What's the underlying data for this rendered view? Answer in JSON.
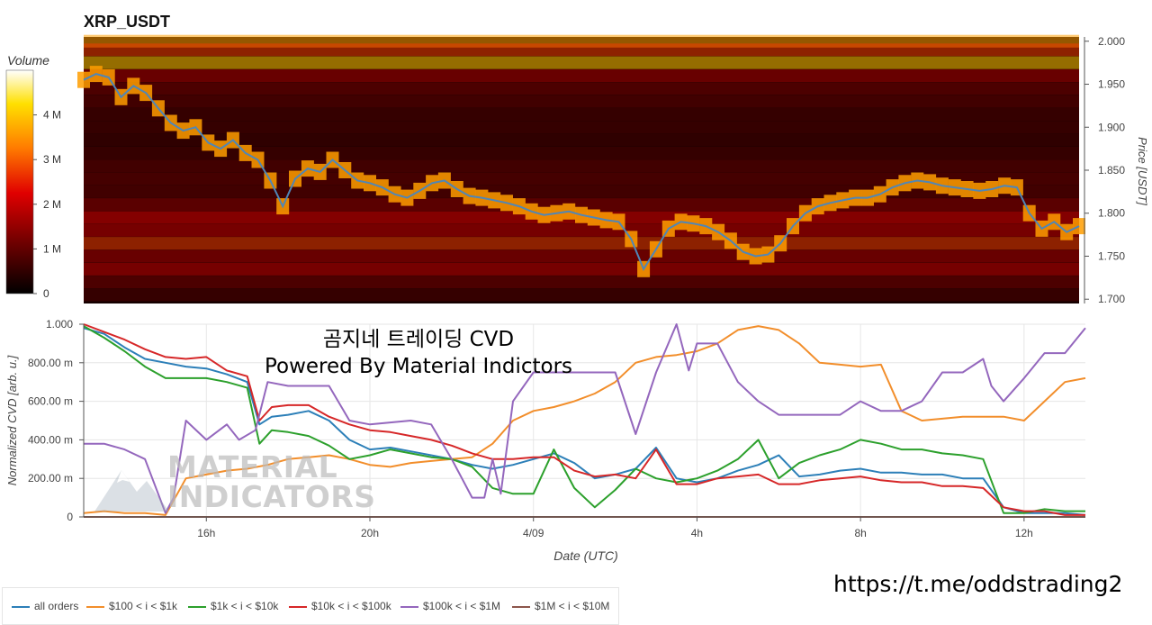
{
  "chart_data": [
    {
      "type": "heatmap",
      "title": "XRP_USDT",
      "ylabel": "Price [USDT]",
      "ylim": [
        1.695,
        2.005
      ],
      "y_ticks": [
        "2.000",
        "1.950",
        "1.900",
        "1.850",
        "1.800",
        "1.750",
        "1.700"
      ],
      "colorbar": {
        "title": "Volume",
        "ticks": [
          "4 M",
          "3 M",
          "2 M",
          "1 M",
          "0"
        ],
        "range": [
          0,
          5
        ]
      },
      "price_line": {
        "color": "#4f86b7",
        "values": [
          1.955,
          1.962,
          1.958,
          1.935,
          1.948,
          1.94,
          1.922,
          1.905,
          1.896,
          1.9,
          1.882,
          1.875,
          1.885,
          1.87,
          1.862,
          1.838,
          1.808,
          1.84,
          1.852,
          1.848,
          1.862,
          1.85,
          1.838,
          1.835,
          1.83,
          1.822,
          1.818,
          1.826,
          1.835,
          1.838,
          1.828,
          1.82,
          1.818,
          1.815,
          1.812,
          1.808,
          1.802,
          1.798,
          1.8,
          1.802,
          1.798,
          1.795,
          1.792,
          1.79,
          1.77,
          1.735,
          1.758,
          1.782,
          1.79,
          1.788,
          1.785,
          1.778,
          1.768,
          1.755,
          1.75,
          1.752,
          1.765,
          1.785,
          1.8,
          1.808,
          1.812,
          1.815,
          1.818,
          1.818,
          1.822,
          1.83,
          1.835,
          1.838,
          1.836,
          1.832,
          1.83,
          1.828,
          1.826,
          1.828,
          1.832,
          1.83,
          1.8,
          1.782,
          1.79,
          1.778,
          1.785
        ]
      },
      "bands": [
        {
          "price": 2.0,
          "level": 0.72
        },
        {
          "price": 1.99,
          "level": 0.55
        },
        {
          "price": 1.975,
          "level": 0.8
        },
        {
          "price": 1.96,
          "level": 0.35
        },
        {
          "price": 1.945,
          "level": 0.25
        },
        {
          "price": 1.93,
          "level": 0.2
        },
        {
          "price": 1.915,
          "level": 0.15
        },
        {
          "price": 1.9,
          "level": 0.15
        },
        {
          "price": 1.885,
          "level": 0.12
        },
        {
          "price": 1.87,
          "level": 0.15
        },
        {
          "price": 1.855,
          "level": 0.2
        },
        {
          "price": 1.84,
          "level": 0.22
        },
        {
          "price": 1.825,
          "level": 0.2
        },
        {
          "price": 1.81,
          "level": 0.3
        },
        {
          "price": 1.795,
          "level": 0.45
        },
        {
          "price": 1.78,
          "level": 0.4
        },
        {
          "price": 1.765,
          "level": 0.55
        },
        {
          "price": 1.75,
          "level": 0.35
        },
        {
          "price": 1.735,
          "level": 0.4
        },
        {
          "price": 1.72,
          "level": 0.25
        },
        {
          "price": 1.705,
          "level": 0.15
        }
      ]
    },
    {
      "type": "line",
      "xlabel": "Date (UTC)",
      "ylabel": "Normalized CVD [arb. u.]",
      "ylim": [
        0,
        1.0
      ],
      "y_ticks": [
        "1.000",
        "800.00 m",
        "600.00 m",
        "400.00 m",
        "200.00 m",
        "0"
      ],
      "x_ticks": [
        "16h",
        "20h",
        "4/09",
        "4h",
        "8h",
        "12h"
      ],
      "x_tick_hours": [
        16,
        20,
        24,
        28,
        32,
        36
      ],
      "x_range_hours": [
        13,
        37.5
      ],
      "grid": true,
      "legend_position": "bottom",
      "series": [
        {
          "name": "all orders",
          "color": "#2c7fb8",
          "x": [
            13,
            13.5,
            14,
            14.5,
            15,
            15.5,
            16,
            16.5,
            17,
            17.3,
            17.6,
            18,
            18.5,
            19,
            19.5,
            20,
            20.5,
            21,
            21.5,
            22,
            22.5,
            23,
            23.5,
            24,
            24.5,
            25,
            25.5,
            26,
            26.5,
            27,
            27.5,
            28,
            28.5,
            29,
            29.5,
            30,
            30.5,
            31,
            31.5,
            32,
            32.5,
            33,
            33.5,
            34,
            34.5,
            35,
            35.5,
            36,
            36.5,
            37,
            37.5
          ],
          "y": [
            0.98,
            0.95,
            0.88,
            0.82,
            0.8,
            0.78,
            0.77,
            0.74,
            0.7,
            0.48,
            0.52,
            0.53,
            0.55,
            0.5,
            0.4,
            0.35,
            0.36,
            0.34,
            0.32,
            0.3,
            0.27,
            0.25,
            0.27,
            0.3,
            0.33,
            0.28,
            0.2,
            0.22,
            0.25,
            0.36,
            0.2,
            0.18,
            0.2,
            0.24,
            0.27,
            0.32,
            0.21,
            0.22,
            0.24,
            0.25,
            0.23,
            0.23,
            0.22,
            0.22,
            0.2,
            0.2,
            0.05,
            0.02,
            0.02,
            0.02,
            0.01
          ]
        },
        {
          "name": "$100 < i < $1k",
          "color": "#f28e2b",
          "x": [
            13,
            13.5,
            14,
            14.5,
            15,
            15.5,
            16,
            16.5,
            17,
            17.5,
            18,
            18.5,
            19,
            19.5,
            20,
            20.5,
            21,
            21.5,
            22,
            22.5,
            23,
            23.5,
            24,
            24.5,
            25,
            25.5,
            26,
            26.5,
            27,
            27.5,
            28,
            28.5,
            29,
            29.5,
            30,
            30.5,
            31,
            31.5,
            32,
            32.5,
            33,
            33.5,
            34,
            34.5,
            35,
            35.5,
            36,
            36.5,
            37,
            37.5
          ],
          "y": [
            0.02,
            0.03,
            0.02,
            0.02,
            0.01,
            0.2,
            0.22,
            0.24,
            0.25,
            0.27,
            0.3,
            0.31,
            0.32,
            0.3,
            0.27,
            0.26,
            0.28,
            0.29,
            0.3,
            0.31,
            0.38,
            0.5,
            0.55,
            0.57,
            0.6,
            0.64,
            0.7,
            0.8,
            0.83,
            0.84,
            0.86,
            0.9,
            0.97,
            0.99,
            0.97,
            0.9,
            0.8,
            0.79,
            0.78,
            0.79,
            0.55,
            0.5,
            0.51,
            0.52,
            0.52,
            0.52,
            0.5,
            0.6,
            0.7,
            0.72
          ]
        },
        {
          "name": "$1k < i < $10k",
          "color": "#2ca02c",
          "x": [
            13,
            13.5,
            14,
            14.5,
            15,
            15.5,
            16,
            16.5,
            17,
            17.3,
            17.6,
            18,
            18.5,
            19,
            19.5,
            20,
            20.5,
            21,
            21.5,
            22,
            22.5,
            23,
            23.5,
            24,
            24.5,
            25,
            25.5,
            26,
            26.5,
            27,
            27.5,
            28,
            28.5,
            29,
            29.5,
            30,
            30.5,
            31,
            31.5,
            32,
            32.5,
            33,
            33.5,
            34,
            34.5,
            35,
            35.5,
            36,
            36.5,
            37,
            37.5
          ],
          "y": [
            0.99,
            0.93,
            0.86,
            0.78,
            0.72,
            0.72,
            0.72,
            0.7,
            0.67,
            0.38,
            0.45,
            0.44,
            0.42,
            0.37,
            0.3,
            0.32,
            0.35,
            0.33,
            0.31,
            0.3,
            0.26,
            0.15,
            0.12,
            0.12,
            0.35,
            0.15,
            0.05,
            0.14,
            0.25,
            0.2,
            0.18,
            0.2,
            0.24,
            0.3,
            0.4,
            0.2,
            0.28,
            0.32,
            0.35,
            0.4,
            0.38,
            0.35,
            0.35,
            0.33,
            0.32,
            0.3,
            0.02,
            0.02,
            0.04,
            0.03,
            0.03
          ]
        },
        {
          "name": "$10k < i < $100k",
          "color": "#d62728",
          "x": [
            13,
            13.5,
            14,
            14.5,
            15,
            15.5,
            16,
            16.5,
            17,
            17.3,
            17.6,
            18,
            18.5,
            19,
            19.5,
            20,
            20.5,
            21,
            21.5,
            22,
            22.5,
            23,
            23.5,
            24,
            24.5,
            25,
            25.5,
            26,
            26.5,
            27,
            27.5,
            28,
            28.5,
            29,
            29.5,
            30,
            30.5,
            31,
            31.5,
            32,
            32.5,
            33,
            33.5,
            34,
            34.5,
            35,
            35.5,
            36,
            36.5,
            37,
            37.5
          ],
          "y": [
            1.0,
            0.96,
            0.92,
            0.87,
            0.83,
            0.82,
            0.83,
            0.76,
            0.73,
            0.5,
            0.57,
            0.58,
            0.58,
            0.52,
            0.48,
            0.45,
            0.44,
            0.42,
            0.4,
            0.37,
            0.33,
            0.3,
            0.3,
            0.31,
            0.31,
            0.24,
            0.21,
            0.22,
            0.2,
            0.35,
            0.17,
            0.17,
            0.2,
            0.21,
            0.22,
            0.17,
            0.17,
            0.19,
            0.2,
            0.21,
            0.19,
            0.18,
            0.18,
            0.16,
            0.16,
            0.15,
            0.05,
            0.03,
            0.03,
            0.01,
            0.01
          ]
        },
        {
          "name": "$100k < i < $1M",
          "color": "#9467bd",
          "x": [
            13,
            13.5,
            14,
            14.5,
            15,
            15.2,
            15.5,
            16,
            16.5,
            16.8,
            17.2,
            17.5,
            18,
            19,
            19.5,
            20,
            21,
            21.5,
            22,
            22.5,
            22.8,
            23,
            23.2,
            23.5,
            24,
            25,
            26,
            26.5,
            27,
            27.5,
            27.8,
            28,
            28.5,
            29,
            29.5,
            30,
            31,
            31.5,
            32,
            32.5,
            33,
            33.5,
            34,
            34.5,
            35,
            35.2,
            35.5,
            36,
            36.5,
            37,
            37.5
          ],
          "y": [
            0.38,
            0.38,
            0.35,
            0.3,
            0.02,
            0.1,
            0.5,
            0.4,
            0.48,
            0.4,
            0.45,
            0.7,
            0.68,
            0.68,
            0.5,
            0.48,
            0.5,
            0.48,
            0.3,
            0.1,
            0.1,
            0.3,
            0.12,
            0.6,
            0.75,
            0.75,
            0.75,
            0.43,
            0.75,
            1.0,
            0.76,
            0.9,
            0.9,
            0.7,
            0.6,
            0.53,
            0.53,
            0.53,
            0.6,
            0.55,
            0.55,
            0.6,
            0.75,
            0.75,
            0.82,
            0.68,
            0.6,
            0.72,
            0.85,
            0.85,
            0.98
          ]
        },
        {
          "name": "$1M < i < $10M",
          "color": "#8c564b",
          "x": [
            13,
            37.5
          ],
          "y": [
            0.0,
            0.0
          ]
        }
      ],
      "annotations": [
        "곰지네 트레이딩 CVD",
        "Powered By Material Indictors"
      ]
    }
  ],
  "watermark": {
    "line1": "MATERIAL",
    "line2": "INDICATORS"
  },
  "link": "https://t.me/oddstrading2"
}
